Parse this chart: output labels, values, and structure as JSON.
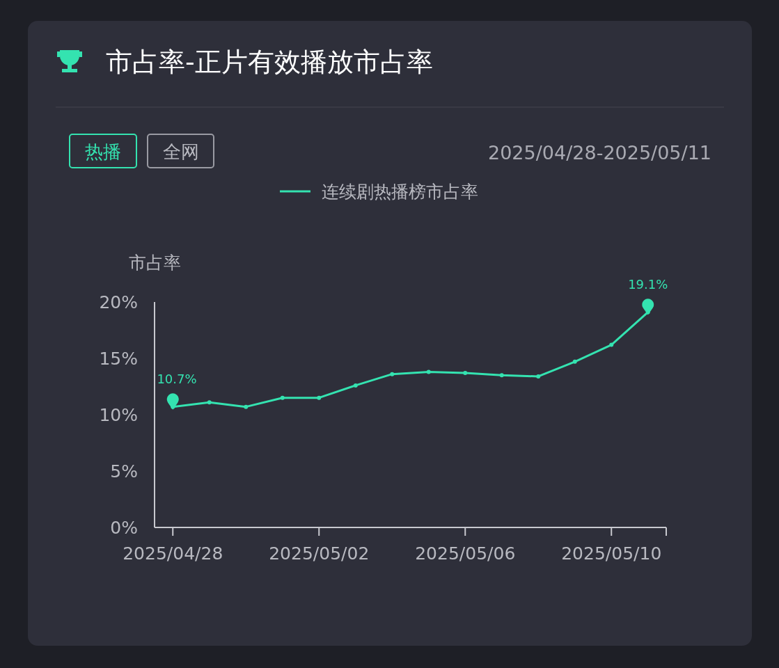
{
  "chart_data": {
    "type": "line",
    "title": "市占率-正片有效播放市占率",
    "annotations": [
      "热播",
      "全网",
      "2025/04/28-2025/05/11"
    ],
    "ylabel": "市占率",
    "categories": [
      "2025/04/28",
      null,
      null,
      null,
      "2025/05/02",
      null,
      null,
      null,
      "2025/05/06",
      null,
      null,
      null,
      "2025/05/10",
      null
    ],
    "series": [
      {
        "name": "连续剧热播榜市占率",
        "color": "#34e3b0",
        "values": [
          10.7,
          11.1,
          10.7,
          11.5,
          11.5,
          12.6,
          13.6,
          13.8,
          13.7,
          13.5,
          13.4,
          14.7,
          16.2,
          19.1
        ],
        "value_labels": [
          "10.7%",
          null,
          null,
          null,
          null,
          null,
          null,
          null,
          null,
          null,
          null,
          null,
          null,
          "19.1%"
        ]
      }
    ],
    "ylim": [
      0,
      20
    ],
    "yticks": [
      {
        "value": 0,
        "label": "0%"
      },
      {
        "value": 5,
        "label": "5%"
      },
      {
        "value": 10,
        "label": "10%"
      },
      {
        "value": 15,
        "label": "15%"
      },
      {
        "value": 20,
        "label": "20%"
      }
    ],
    "grid": false,
    "legend": "top",
    "marker": "circle",
    "line_style": "solid"
  }
}
